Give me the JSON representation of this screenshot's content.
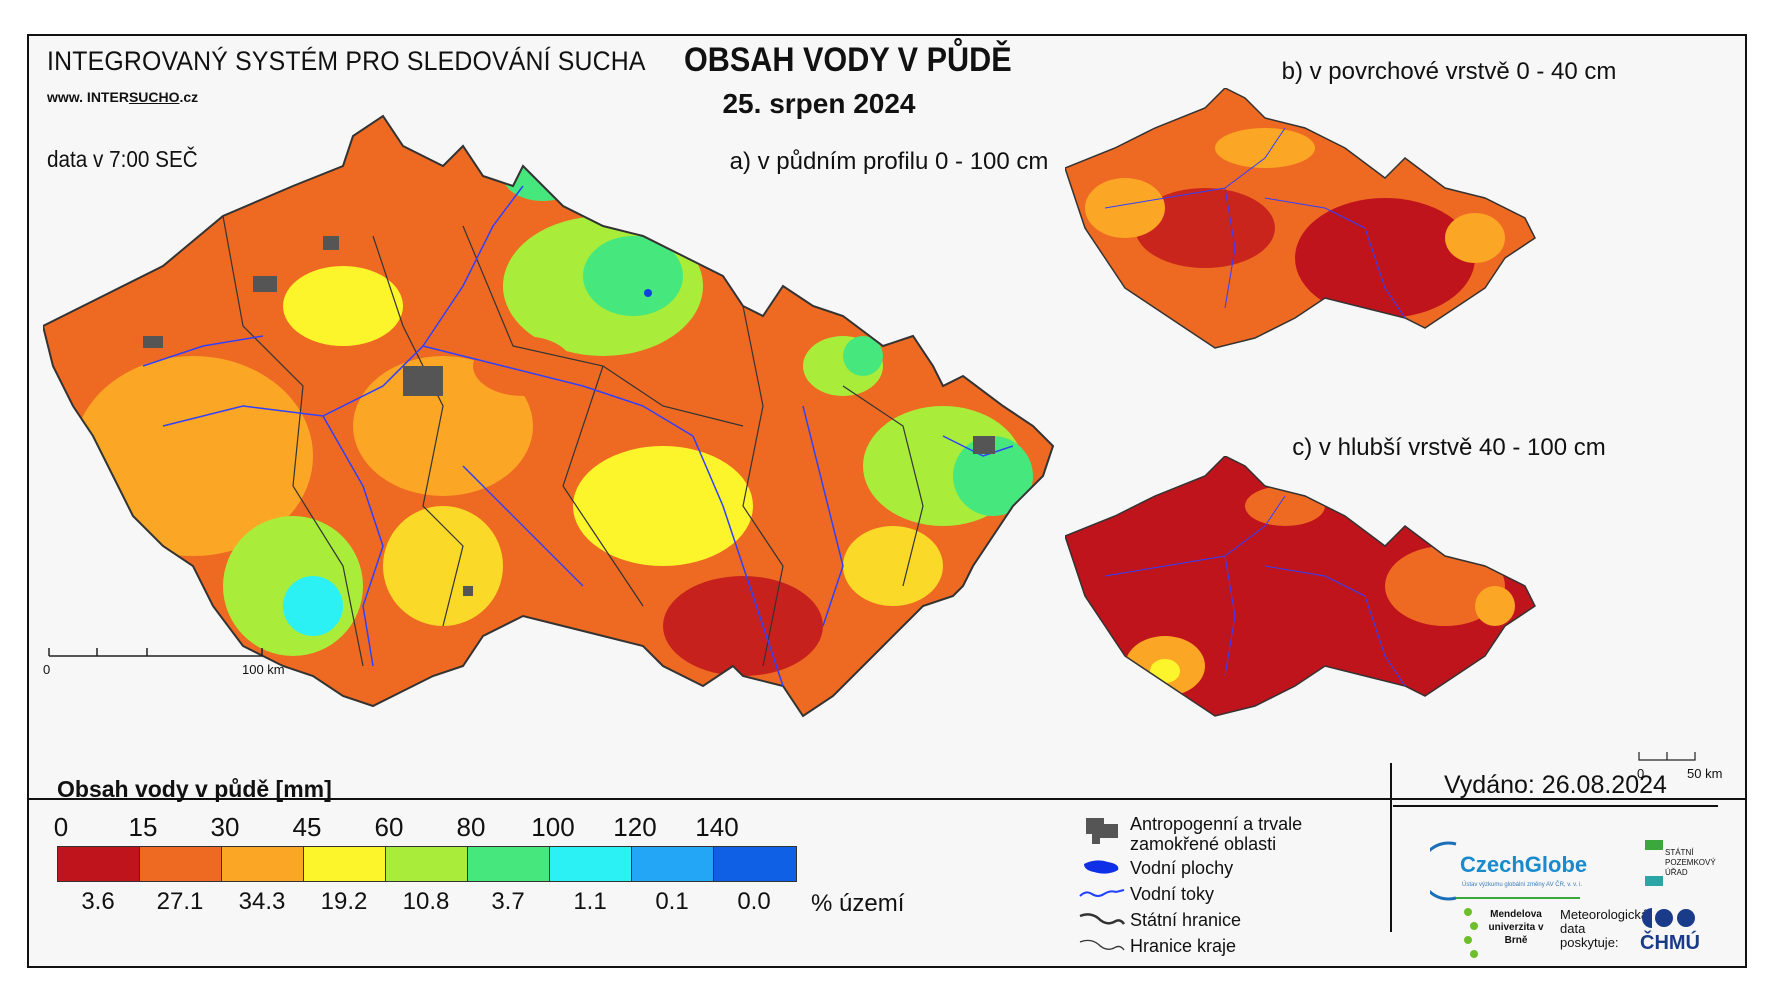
{
  "header": {
    "system_title": "INTEGROVANÝ SYSTÉM PRO SLEDOVÁNÍ SUCHA",
    "website_prefix": "www. INTER",
    "website_highlight": "SUCHO",
    "website_suffix": ".cz",
    "data_time": "data v 7:00 SEČ",
    "main_title": "OBSAH VODY V PŮDĚ",
    "date": "25. srpen 2024"
  },
  "maps": {
    "a_title": "a) v půdním profilu 0 - 100 cm",
    "b_title": "b) v povrchové vrstvě 0 - 40 cm",
    "c_title": "c) v hlubší vrstvě 40 - 100 cm",
    "scale_main": {
      "start": "0",
      "end": "100 km"
    },
    "scale_small": {
      "start": "0",
      "end": "50 km"
    }
  },
  "legend": {
    "title": "Obsah vody v půdě  [mm]",
    "ticks": [
      "0",
      "15",
      "30",
      "45",
      "60",
      "80",
      "100",
      "120",
      "140"
    ],
    "colors": [
      "#c0141c",
      "#ee6a22",
      "#fba725",
      "#fdf52b",
      "#a9ed3a",
      "#46e77d",
      "#2bf1f4",
      "#24a6f6",
      "#1060e6"
    ],
    "percents": [
      "3.6",
      "27.1",
      "34.3",
      "19.2",
      "10.8",
      "3.7",
      "1.1",
      "0.1",
      "0.0"
    ],
    "percent_unit": "% území"
  },
  "key": {
    "anthropogenic": "Antropogenní a trvale zamokřené oblasti",
    "water_bodies": "Vodní plochy",
    "streams": "Vodní toky",
    "state_border": "Státní hranice",
    "region_border": "Hranice kraje"
  },
  "issued": "Vydáno: 26.08.2024",
  "logos": {
    "czechglobe": "CzechGlobe",
    "czechglobe_sub": "Ústav výzkumu globální změny AV ČR, v. v. i.",
    "spu": "STÁTNÍ POZEMKOVÝ ÚŘAD",
    "mendelu": "Mendelova univerzita v Brně",
    "meteo": "Meteorologická data poskytuje:",
    "chmu": "ČHMÚ"
  }
}
